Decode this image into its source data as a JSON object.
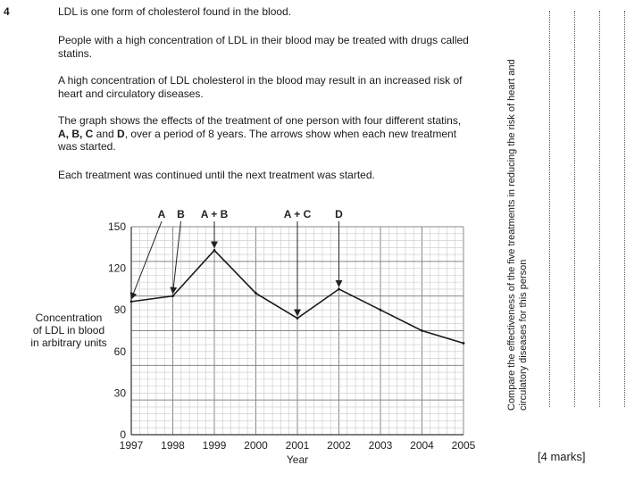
{
  "question": {
    "number": "4",
    "p1": "LDL is one form of cholesterol found in the blood.",
    "p2_l1": "People with a high concentration of LDL in their blood may be treated with drugs called",
    "p2_l2": "statins.",
    "p3_l1": "A high concentration of LDL cholesterol in the blood may result in an increased risk of",
    "p3_l2": "heart and circulatory diseases.",
    "p4_l1": "The graph shows the effects of the treatment of one person with four different statins,",
    "p4_l2_b": "A, B, C",
    "p4_l2_mid": " and ",
    "p4_l2_b2": "D",
    "p4_l2_rest": ", over a period of 8 years.  The arrows show when each new treatment",
    "p4_l3": "was started.",
    "p5": "Each treatment was continued until the next treatment was started.",
    "task_l1": "Compare the effectiveness of the five treatments in reducing the risk of heart and",
    "task_l2": "circulatory diseases for this person",
    "marks": "[4 marks]"
  },
  "chart_data": {
    "type": "line",
    "xlabel": "Year",
    "ylabel_lines": [
      "Concentration",
      "of LDL in blood",
      "in arbitrary units"
    ],
    "xlim": [
      1997,
      2005
    ],
    "ylim": [
      0,
      150
    ],
    "x_ticks": [
      1997,
      1998,
      1999,
      2000,
      2001,
      2002,
      2003,
      2004,
      2005
    ],
    "y_ticks": [
      0,
      30,
      60,
      90,
      120,
      150
    ],
    "grid": true,
    "series": [
      {
        "x": [
          1997,
          1998,
          1999,
          2000,
          2001,
          2002,
          2003,
          2004,
          2005
        ],
        "y": [
          96,
          100,
          133,
          102,
          84,
          105,
          90,
          75,
          66
        ]
      }
    ],
    "annotations": [
      {
        "label": "A",
        "x": 1997
      },
      {
        "label": "B",
        "x": 1998
      },
      {
        "label": "A + B",
        "x": 1999
      },
      {
        "label": "A + C",
        "x": 2001
      },
      {
        "label": "D",
        "x": 2002
      }
    ]
  }
}
